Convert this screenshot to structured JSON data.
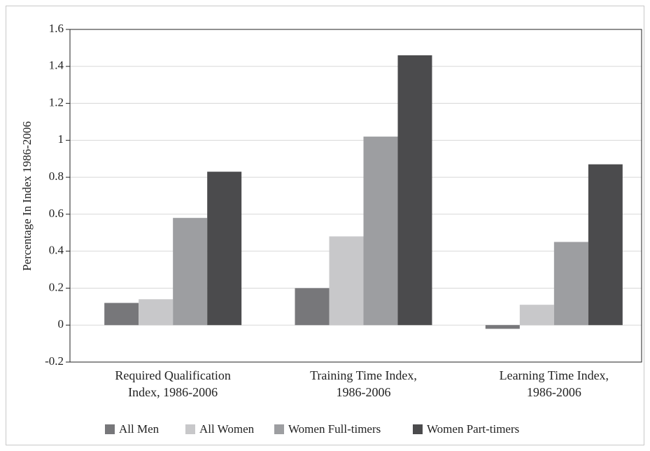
{
  "chart_data": {
    "type": "bar",
    "y_label": "Percentage In Index 1986-2006",
    "categories": [
      "Required Qualification\nIndex, 1986-2006",
      "Training Time Index,\n1986-2006",
      "Learning Time Index,\n1986-2006"
    ],
    "series": [
      {
        "name": "All Men",
        "color": "#77777a",
        "values": [
          0.12,
          0.2,
          -0.02
        ]
      },
      {
        "name": "All Women",
        "color": "#c8c8ca",
        "values": [
          0.14,
          0.48,
          0.11
        ]
      },
      {
        "name": "Women Full-timers",
        "color": "#9d9ea1",
        "values": [
          0.58,
          1.02,
          0.45
        ]
      },
      {
        "name": "Women Part-timers",
        "color": "#4b4b4d",
        "values": [
          0.83,
          1.46,
          0.87
        ]
      }
    ],
    "ylim": [
      -0.2,
      1.6
    ],
    "yticks": [
      -0.2,
      0,
      0.2,
      0.4,
      0.6,
      0.8,
      1,
      1.2,
      1.4,
      1.6
    ],
    "grid": true
  }
}
